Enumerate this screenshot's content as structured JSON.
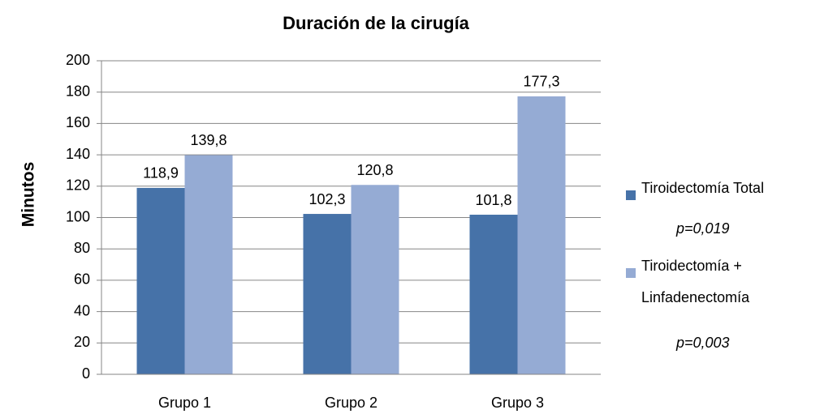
{
  "chart_data": {
    "type": "bar",
    "title": "Duración de la cirugía",
    "y_label": "Minutos",
    "categories": [
      "Grupo 1",
      "Grupo 2",
      "Grupo 3"
    ],
    "series": [
      {
        "name": "Tiroidectomía Total",
        "color": "#4672a8",
        "values": [
          118.9,
          102.3,
          101.8
        ],
        "value_labels": [
          "118,9",
          "102,3",
          "101,8"
        ]
      },
      {
        "name": "Tiroidectomía + Linfadenectomía",
        "color": "#95abd4",
        "values": [
          139.8,
          120.8,
          177.3
        ],
        "value_labels": [
          "139,8",
          "120,8",
          "177,3"
        ]
      }
    ],
    "annotations": [
      "p=0,019",
      "p=0,003"
    ],
    "ylim": [
      0,
      200
    ],
    "yticks": [
      0,
      20,
      40,
      60,
      80,
      100,
      120,
      140,
      160,
      180,
      200
    ],
    "grid": true,
    "legend": "right"
  }
}
